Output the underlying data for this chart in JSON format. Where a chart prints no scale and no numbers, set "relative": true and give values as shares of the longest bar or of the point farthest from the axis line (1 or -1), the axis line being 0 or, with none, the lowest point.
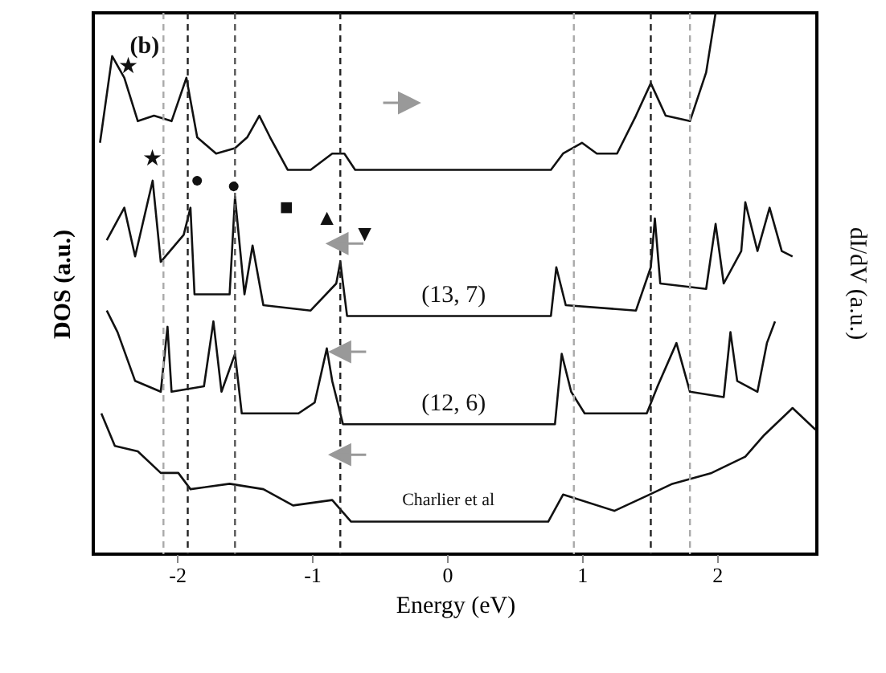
{
  "chart_data": {
    "type": "line",
    "relative": true,
    "xlabel": "Energy (eV)",
    "ylabel": "DOS (a.u.)",
    "y2label": "dI/dV (a.u.)",
    "xlim": [
      -2.62,
      2.74
    ],
    "xticks": [
      -2,
      -1,
      0,
      1,
      2
    ],
    "grid": false,
    "line_style": "solid",
    "series": [
      {
        "color": "#111111",
        "x": [
          -2.57,
          -2.48,
          -2.39,
          -2.29,
          -2.17,
          -2.04,
          -1.93,
          -1.85,
          -1.71,
          -1.57,
          -1.48,
          -1.39,
          -1.31,
          -1.18,
          -1.01,
          -0.85,
          -0.76,
          -0.68,
          -0.33,
          0.31,
          0.77,
          0.86,
          1.0,
          1.11,
          1.26,
          1.4,
          1.51,
          1.62,
          1.8,
          1.92,
          1.99
        ],
        "values": [
          0.76,
          0.92,
          0.88,
          0.8,
          0.81,
          0.8,
          0.88,
          0.77,
          0.74,
          0.75,
          0.77,
          0.81,
          0.77,
          0.71,
          0.71,
          0.74,
          0.74,
          0.71,
          0.71,
          0.71,
          0.71,
          0.74,
          0.76,
          0.74,
          0.74,
          0.81,
          0.87,
          0.81,
          0.8,
          0.89,
          1
        ]
      },
      {
        "color": "#111111",
        "x": [
          -2.52,
          -2.39,
          -2.31,
          -2.18,
          -2.12,
          -1.95,
          -1.9,
          -1.87,
          -1.61,
          -1.57,
          -1.5,
          -1.44,
          -1.36,
          -1.01,
          -0.82,
          -0.79,
          -0.74,
          0.77,
          0.81,
          0.88,
          1.4,
          1.51,
          1.54,
          1.58,
          1.92,
          1.99,
          2.05,
          2.18,
          2.21,
          2.3,
          2.39,
          2.48,
          2.56
        ],
        "values": [
          0.58,
          0.64,
          0.55,
          0.69,
          0.54,
          0.59,
          0.64,
          0.48,
          0.48,
          0.66,
          0.48,
          0.57,
          0.46,
          0.45,
          0.5,
          0.54,
          0.44,
          0.44,
          0.53,
          0.46,
          0.45,
          0.53,
          0.62,
          0.5,
          0.49,
          0.61,
          0.5,
          0.56,
          0.65,
          0.56,
          0.64,
          0.56,
          0.55
        ]
      },
      {
        "color": "#111111",
        "x": [
          -2.52,
          -2.44,
          -2.31,
          -2.12,
          -2.07,
          -2.04,
          -1.8,
          -1.73,
          -1.67,
          -1.57,
          -1.52,
          -1.1,
          -0.98,
          -0.89,
          -0.85,
          -0.77,
          0.8,
          0.85,
          0.92,
          1.02,
          1.48,
          1.56,
          1.7,
          1.8,
          2.05,
          2.1,
          2.15,
          2.3,
          2.37,
          2.43
        ],
        "values": [
          0.45,
          0.41,
          0.32,
          0.3,
          0.42,
          0.3,
          0.31,
          0.43,
          0.3,
          0.37,
          0.26,
          0.26,
          0.28,
          0.38,
          0.32,
          0.24,
          0.24,
          0.37,
          0.3,
          0.26,
          0.26,
          0.31,
          0.39,
          0.3,
          0.29,
          0.41,
          0.32,
          0.3,
          0.39,
          0.43
        ]
      },
      {
        "color": "#111111",
        "x": [
          -2.56,
          -2.46,
          -2.29,
          -2.12,
          -1.99,
          -1.9,
          -1.61,
          -1.36,
          -1.14,
          -0.85,
          -0.71,
          0.75,
          0.86,
          1.24,
          1.5,
          1.67,
          1.96,
          2.21,
          2.35,
          2.56,
          2.73
        ],
        "values": [
          0.26,
          0.2,
          0.19,
          0.15,
          0.15,
          0.12,
          0.13,
          0.12,
          0.09,
          0.1,
          0.06,
          0.06,
          0.11,
          0.08,
          0.11,
          0.13,
          0.15,
          0.18,
          0.22,
          0.27,
          0.23
        ]
      }
    ],
    "ref_lines": [
      {
        "axis": "x",
        "value": -2.1,
        "color": "#aaaaaa",
        "line_style": "dashed"
      },
      {
        "axis": "x",
        "value": -1.92,
        "color": "#222222",
        "line_style": "dashed"
      },
      {
        "axis": "x",
        "value": -1.57,
        "color": "#555555",
        "line_style": "dashed"
      },
      {
        "axis": "x",
        "value": -0.79,
        "color": "#222222",
        "line_style": "dashed"
      },
      {
        "axis": "x",
        "value": 0.94,
        "color": "#aaaaaa",
        "line_style": "dashed"
      },
      {
        "axis": "x",
        "value": 1.51,
        "color": "#222222",
        "line_style": "dashed"
      },
      {
        "axis": "x",
        "value": 1.8,
        "color": "#aaaaaa",
        "line_style": "dashed"
      }
    ],
    "annotations": [
      "(b)",
      "(13, 7)",
      "(12, 6)",
      "Charlier et al",
      "★",
      "★",
      "●",
      "●",
      "■",
      "▲",
      "▼"
    ]
  }
}
